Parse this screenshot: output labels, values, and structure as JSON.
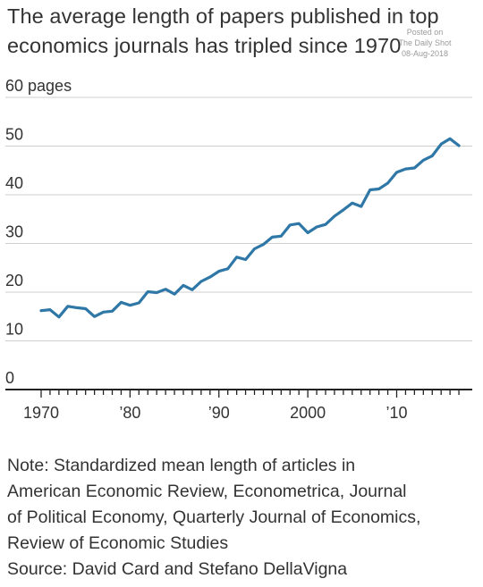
{
  "title": "The average length of papers published in top economics journals has tripled since 1970",
  "watermark": {
    "line1": "Posted on",
    "line2": "The Daily Shot",
    "line3": "08-Aug-2018"
  },
  "chart_data": {
    "type": "line",
    "ylabel": "",
    "ylim": [
      0,
      60
    ],
    "yticks": [
      0,
      10,
      20,
      30,
      40,
      50,
      60
    ],
    "ytick_labels": [
      "0",
      "10",
      "20",
      "30",
      "40",
      "50",
      "60 pages"
    ],
    "xlim": [
      1970,
      2018
    ],
    "xticks": [
      1970,
      1980,
      1990,
      2000,
      2010
    ],
    "xtick_labels": [
      "1970",
      "’80",
      "’90",
      "2000",
      "’10"
    ],
    "grid": true,
    "series": [
      {
        "color": "#2e77a6",
        "x": [
          1970,
          1971,
          1972,
          1973,
          1974,
          1975,
          1976,
          1977,
          1978,
          1979,
          1980,
          1981,
          1982,
          1983,
          1984,
          1985,
          1986,
          1987,
          1988,
          1989,
          1990,
          1991,
          1992,
          1993,
          1994,
          1995,
          1996,
          1997,
          1998,
          1999,
          2000,
          2001,
          2002,
          2003,
          2004,
          2005,
          2006,
          2007,
          2008,
          2009,
          2010,
          2011,
          2012,
          2013,
          2014,
          2015,
          2016,
          2017
        ],
        "y": [
          16.2,
          16.4,
          14.9,
          17.1,
          16.8,
          16.6,
          15.0,
          15.9,
          16.1,
          17.9,
          17.3,
          17.8,
          20.1,
          19.9,
          20.6,
          19.6,
          21.4,
          20.5,
          22.2,
          23.1,
          24.3,
          24.8,
          27.2,
          26.7,
          28.9,
          29.8,
          31.3,
          31.5,
          33.8,
          34.1,
          32.2,
          33.4,
          33.9,
          35.6,
          36.9,
          38.3,
          37.6,
          41.0,
          41.2,
          42.4,
          44.6,
          45.3,
          45.5,
          47.1,
          48.0,
          50.4,
          51.5,
          50.1
        ]
      }
    ]
  },
  "note": {
    "line1": "Note: Standardized mean length of articles in",
    "line2": "American Economic Review, Econometrica, Journal",
    "line3": "of Political Economy, Quarterly Journal of Economics,",
    "line4": "Review of Economic Studies",
    "source": "Source: David Card and Stefano DellaVigna"
  }
}
